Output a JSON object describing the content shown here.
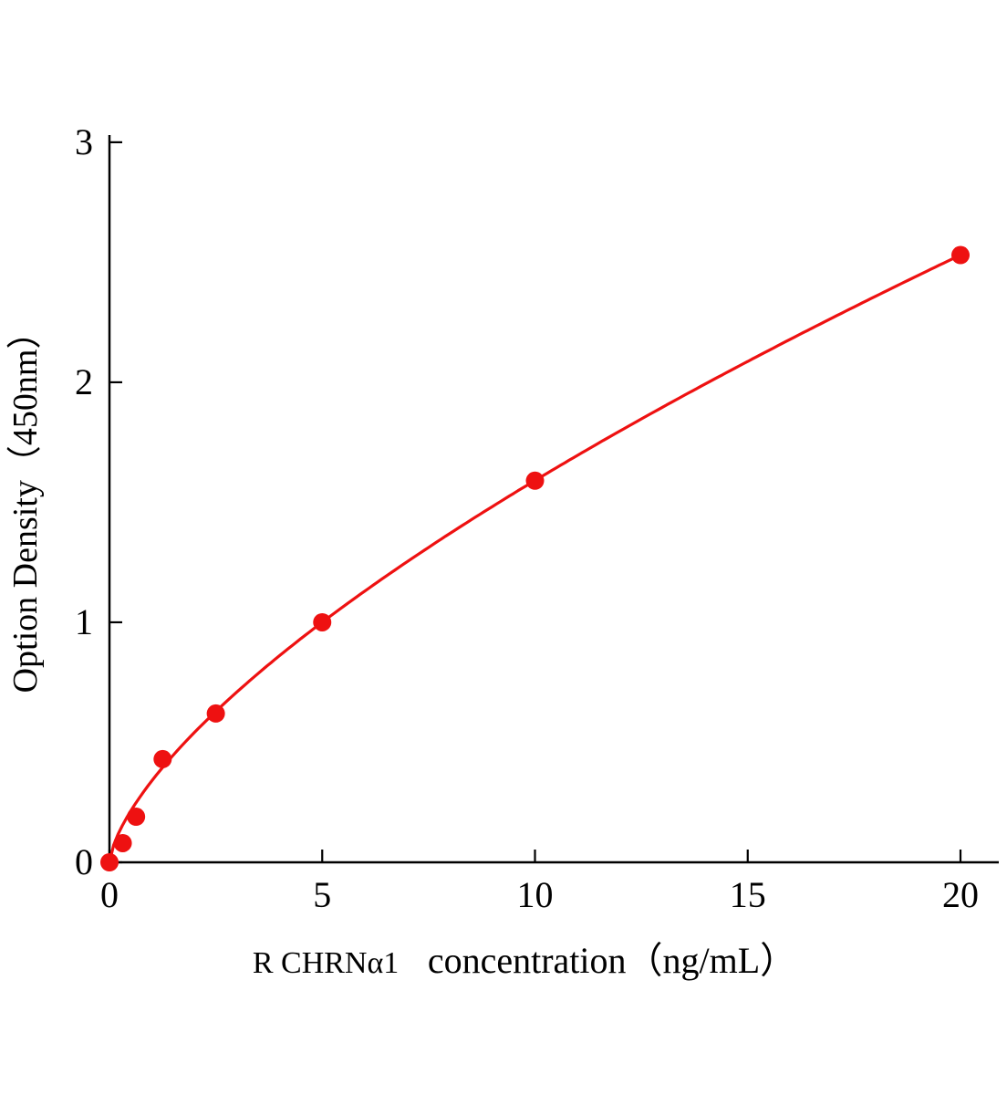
{
  "chart_data": {
    "type": "scatter",
    "title": "",
    "ylabel": "Option Density（450nm）",
    "xlabel_gene": "R CHRNα1",
    "xlabel_rest": "concentration（ng/mL）",
    "x": [
      0,
      0.312,
      0.625,
      1.25,
      2.5,
      5,
      10,
      20
    ],
    "y": [
      0,
      0.08,
      0.19,
      0.43,
      0.62,
      1.0,
      1.59,
      2.53
    ],
    "xlim": [
      0,
      20.9
    ],
    "ylim": [
      0,
      3.03
    ],
    "xticks": [
      0,
      5,
      10,
      15,
      20
    ],
    "yticks": [
      0,
      1,
      2,
      3
    ],
    "grid": false,
    "legend": "none",
    "point_color": "#ee1111",
    "line_color": "#ee1111",
    "axis_color": "#000000",
    "fit": {
      "type": "power",
      "a": 0.3405,
      "b": 0.6695
    }
  }
}
